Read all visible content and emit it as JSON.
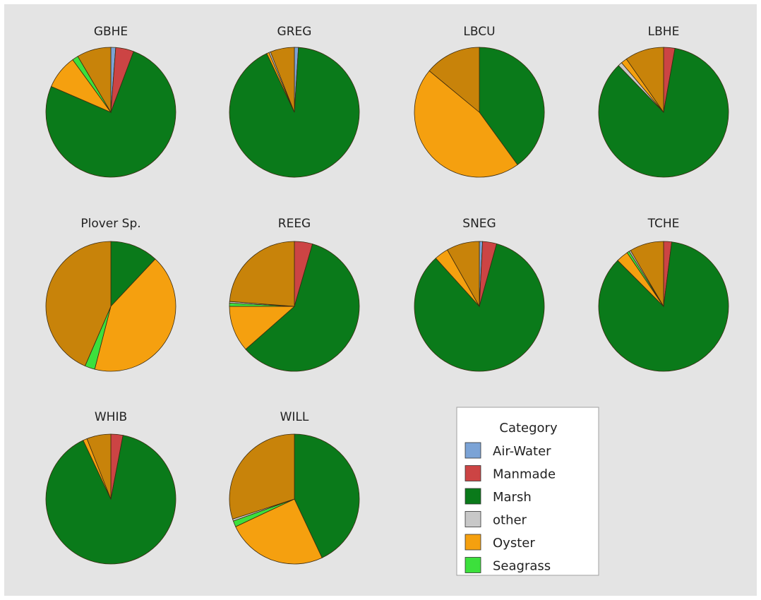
{
  "chart_data": {
    "type": "pie",
    "legend": {
      "title": "Category",
      "placement": "bottom-right",
      "categories": [
        {
          "name": "Air-Water",
          "color": "#7ba3d6"
        },
        {
          "name": "Manmade",
          "color": "#cc4444"
        },
        {
          "name": "Marsh",
          "color": "#0a7a1a"
        },
        {
          "name": "other",
          "color": "#c8c8c8"
        },
        {
          "name": "Oyster",
          "color": "#f5a00f"
        },
        {
          "name": "Seagrass",
          "color": "#3ce03c"
        }
      ]
    },
    "dark_wedge_color": "#c8830a",
    "pies": [
      {
        "title": "GBHE",
        "slices": [
          {
            "category": "Air-Water",
            "value": 1.2
          },
          {
            "category": "Manmade",
            "value": 4.5
          },
          {
            "category": "Marsh",
            "value": 75.8
          },
          {
            "category": "Oyster",
            "value": 8.5
          },
          {
            "category": "Seagrass",
            "value": 1.5
          },
          {
            "category": "Oyster",
            "value": 8.5,
            "shade": "dark"
          }
        ]
      },
      {
        "title": "GREG",
        "slices": [
          {
            "category": "Air-Water",
            "value": 1.0
          },
          {
            "category": "Marsh",
            "value": 92.0
          },
          {
            "category": "Oyster",
            "value": 0.6
          },
          {
            "category": "other",
            "value": 0.4
          },
          {
            "category": "Oyster",
            "value": 6.0,
            "shade": "dark"
          }
        ]
      },
      {
        "title": "LBCU",
        "slices": [
          {
            "category": "Marsh",
            "value": 40.0
          },
          {
            "category": "Oyster",
            "value": 46.0
          },
          {
            "category": "Oyster",
            "value": 14.0,
            "shade": "dark"
          }
        ]
      },
      {
        "title": "LBHE",
        "slices": [
          {
            "category": "Manmade",
            "value": 2.8
          },
          {
            "category": "Marsh",
            "value": 85.0
          },
          {
            "category": "other",
            "value": 1.0
          },
          {
            "category": "Oyster",
            "value": 1.5
          },
          {
            "category": "Oyster",
            "value": 9.7,
            "shade": "dark"
          }
        ]
      },
      {
        "title": "Plover Sp.",
        "slices": [
          {
            "category": "Marsh",
            "value": 12.0
          },
          {
            "category": "Oyster",
            "value": 42.0
          },
          {
            "category": "Seagrass",
            "value": 2.5
          },
          {
            "category": "Oyster",
            "value": 43.5,
            "shade": "dark"
          }
        ]
      },
      {
        "title": "REEG",
        "slices": [
          {
            "category": "Manmade",
            "value": 4.5
          },
          {
            "category": "Marsh",
            "value": 59.0
          },
          {
            "category": "Oyster",
            "value": 11.5
          },
          {
            "category": "Seagrass",
            "value": 0.8
          },
          {
            "category": "other",
            "value": 0.4
          },
          {
            "category": "Oyster",
            "value": 23.8,
            "shade": "dark"
          }
        ]
      },
      {
        "title": "SNEG",
        "slices": [
          {
            "category": "Air-Water",
            "value": 0.8
          },
          {
            "category": "Manmade",
            "value": 3.5
          },
          {
            "category": "Marsh",
            "value": 84.0
          },
          {
            "category": "Oyster",
            "value": 3.5
          },
          {
            "category": "Oyster",
            "value": 8.2,
            "shade": "dark"
          }
        ]
      },
      {
        "title": "TCHE",
        "slices": [
          {
            "category": "Manmade",
            "value": 2.0
          },
          {
            "category": "Marsh",
            "value": 85.5
          },
          {
            "category": "Oyster",
            "value": 3.0
          },
          {
            "category": "Seagrass",
            "value": 0.6
          },
          {
            "category": "other",
            "value": 0.4
          },
          {
            "category": "Oyster",
            "value": 8.5,
            "shade": "dark"
          }
        ]
      },
      {
        "title": "WHIB",
        "slices": [
          {
            "category": "Manmade",
            "value": 3.0
          },
          {
            "category": "Marsh",
            "value": 90.0
          },
          {
            "category": "Oyster",
            "value": 1.0
          },
          {
            "category": "Oyster",
            "value": 6.0,
            "shade": "dark"
          }
        ]
      },
      {
        "title": "WILL",
        "slices": [
          {
            "category": "Marsh",
            "value": 43.0
          },
          {
            "category": "Oyster",
            "value": 25.0
          },
          {
            "category": "Seagrass",
            "value": 1.5
          },
          {
            "category": "other",
            "value": 0.5
          },
          {
            "category": "Oyster",
            "value": 30.0,
            "shade": "dark"
          }
        ]
      }
    ]
  }
}
